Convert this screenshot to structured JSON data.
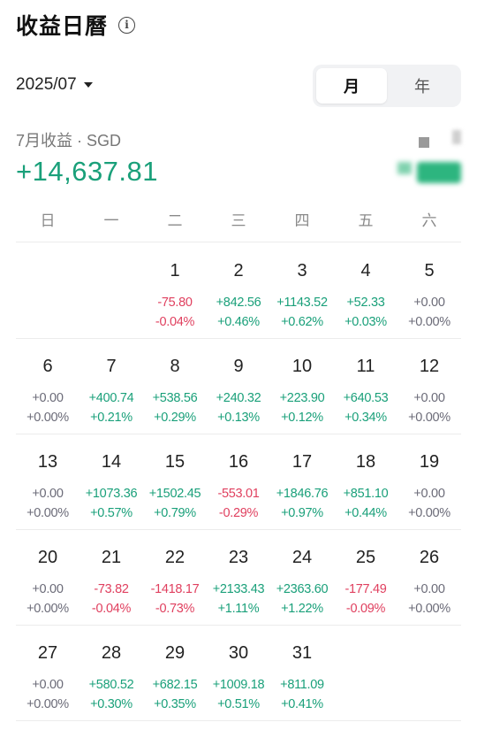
{
  "header": {
    "title": "收益日曆",
    "info_icon": "info-icon"
  },
  "month_picker": {
    "value": "2025/07"
  },
  "period_toggle": {
    "options": [
      "月",
      "年"
    ],
    "selected": "月"
  },
  "summary": {
    "label": "7月收益 · SGD",
    "value": "+14,637.81"
  },
  "colors": {
    "positive": "#1aa07a",
    "negative": "#e0405f",
    "neutral": "#6b6b78"
  },
  "weekdays": [
    "日",
    "一",
    "二",
    "三",
    "四",
    "五",
    "六"
  ],
  "calendar": {
    "first_weekday_offset": 2,
    "days": [
      {
        "day": "1",
        "amount": "-75.80",
        "percent": "-0.04%",
        "trend": "neg"
      },
      {
        "day": "2",
        "amount": "+842.56",
        "percent": "+0.46%",
        "trend": "pos"
      },
      {
        "day": "3",
        "amount": "+1143.52",
        "percent": "+0.62%",
        "trend": "pos"
      },
      {
        "day": "4",
        "amount": "+52.33",
        "percent": "+0.03%",
        "trend": "pos"
      },
      {
        "day": "5",
        "amount": "+0.00",
        "percent": "+0.00%",
        "trend": "zero"
      },
      {
        "day": "6",
        "amount": "+0.00",
        "percent": "+0.00%",
        "trend": "zero"
      },
      {
        "day": "7",
        "amount": "+400.74",
        "percent": "+0.21%",
        "trend": "pos"
      },
      {
        "day": "8",
        "amount": "+538.56",
        "percent": "+0.29%",
        "trend": "pos"
      },
      {
        "day": "9",
        "amount": "+240.32",
        "percent": "+0.13%",
        "trend": "pos"
      },
      {
        "day": "10",
        "amount": "+223.90",
        "percent": "+0.12%",
        "trend": "pos"
      },
      {
        "day": "11",
        "amount": "+640.53",
        "percent": "+0.34%",
        "trend": "pos"
      },
      {
        "day": "12",
        "amount": "+0.00",
        "percent": "+0.00%",
        "trend": "zero"
      },
      {
        "day": "13",
        "amount": "+0.00",
        "percent": "+0.00%",
        "trend": "zero"
      },
      {
        "day": "14",
        "amount": "+1073.36",
        "percent": "+0.57%",
        "trend": "pos"
      },
      {
        "day": "15",
        "amount": "+1502.45",
        "percent": "+0.79%",
        "trend": "pos"
      },
      {
        "day": "16",
        "amount": "-553.01",
        "percent": "-0.29%",
        "trend": "neg"
      },
      {
        "day": "17",
        "amount": "+1846.76",
        "percent": "+0.97%",
        "trend": "pos"
      },
      {
        "day": "18",
        "amount": "+851.10",
        "percent": "+0.44%",
        "trend": "pos"
      },
      {
        "day": "19",
        "amount": "+0.00",
        "percent": "+0.00%",
        "trend": "zero"
      },
      {
        "day": "20",
        "amount": "+0.00",
        "percent": "+0.00%",
        "trend": "zero"
      },
      {
        "day": "21",
        "amount": "-73.82",
        "percent": "-0.04%",
        "trend": "neg"
      },
      {
        "day": "22",
        "amount": "-1418.17",
        "percent": "-0.73%",
        "trend": "neg"
      },
      {
        "day": "23",
        "amount": "+2133.43",
        "percent": "+1.11%",
        "trend": "pos"
      },
      {
        "day": "24",
        "amount": "+2363.60",
        "percent": "+1.22%",
        "trend": "pos"
      },
      {
        "day": "25",
        "amount": "-177.49",
        "percent": "-0.09%",
        "trend": "neg"
      },
      {
        "day": "26",
        "amount": "+0.00",
        "percent": "+0.00%",
        "trend": "zero"
      },
      {
        "day": "27",
        "amount": "+0.00",
        "percent": "+0.00%",
        "trend": "zero"
      },
      {
        "day": "28",
        "amount": "+580.52",
        "percent": "+0.30%",
        "trend": "pos"
      },
      {
        "day": "29",
        "amount": "+682.15",
        "percent": "+0.35%",
        "trend": "pos"
      },
      {
        "day": "30",
        "amount": "+1009.18",
        "percent": "+0.51%",
        "trend": "pos"
      },
      {
        "day": "31",
        "amount": "+811.09",
        "percent": "+0.41%",
        "trend": "pos"
      }
    ]
  }
}
